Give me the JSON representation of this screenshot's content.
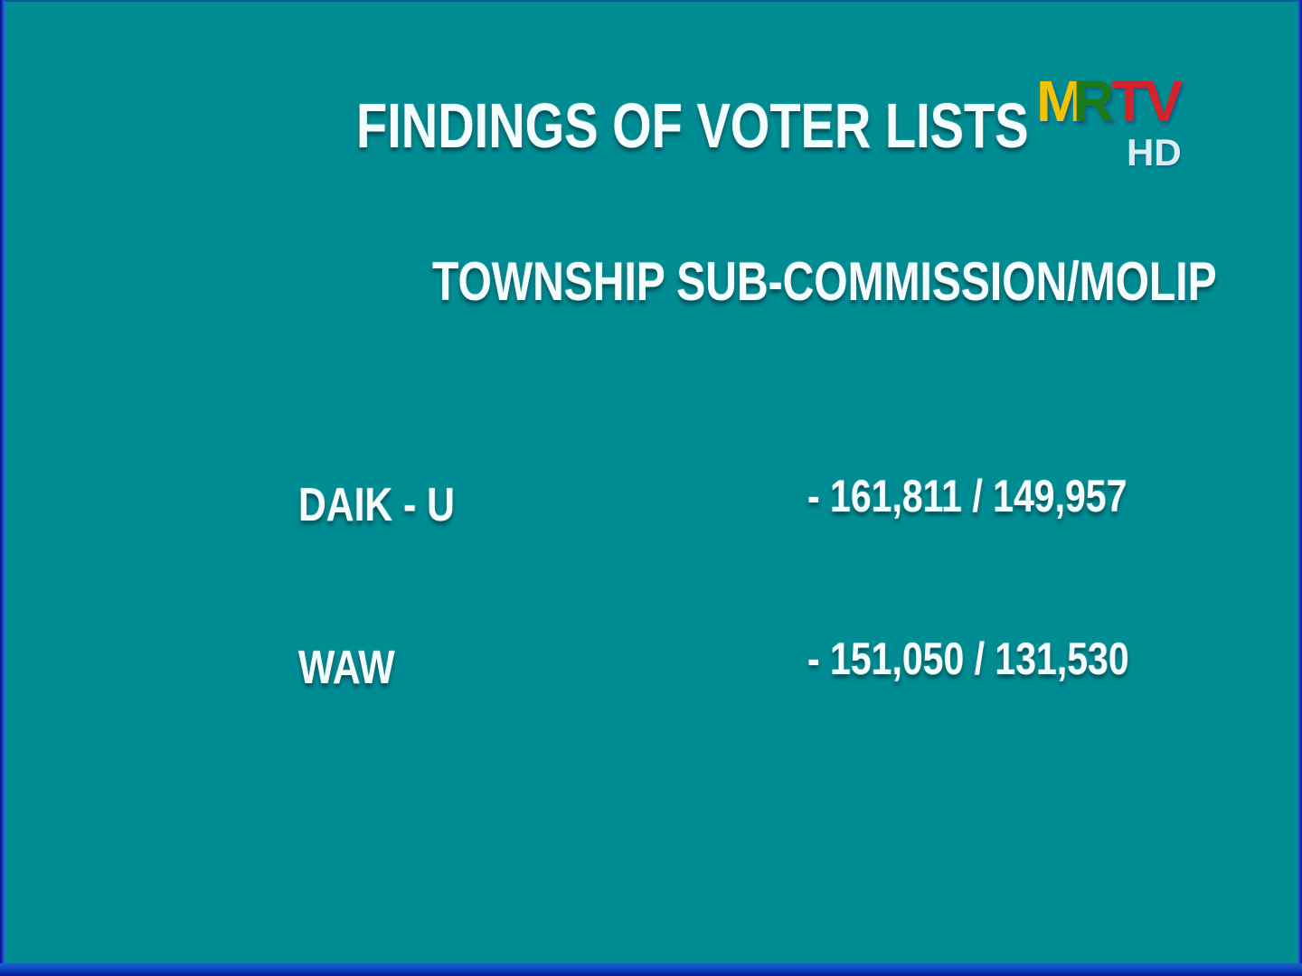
{
  "header": {
    "title": "FINDINGS OF VOTER LISTS",
    "subtitle": "TOWNSHIP SUB-COMMISSION/MOLIP"
  },
  "logo": {
    "part_m": "M",
    "part_r": "R",
    "part_tv": "TV",
    "hd_label": "HD",
    "colors": {
      "m": "#F2C400",
      "r": "#1B7B1B",
      "tv": "#D6232B",
      "hd": "#D9EEF4"
    }
  },
  "rows": [
    {
      "township": "DAIK - U",
      "value": "- 161,811 / 149,957"
    },
    {
      "township": "WAW",
      "value": "- 151,050 / 131,530"
    }
  ],
  "colors": {
    "background": "#008C93",
    "text": "#F4FDFE",
    "frame_blue_bright": "#1566CC",
    "frame_blue_dark": "#071A96"
  }
}
